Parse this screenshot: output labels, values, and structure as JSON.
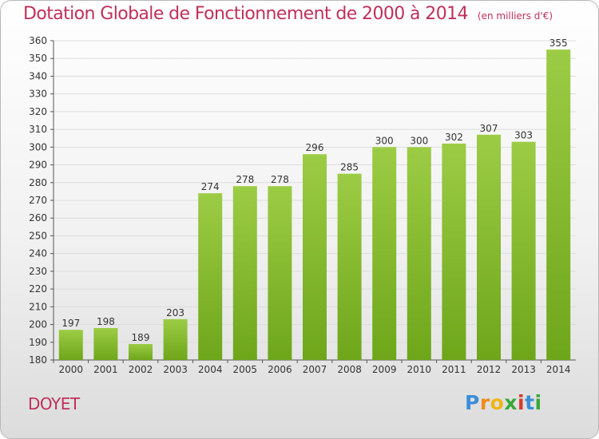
{
  "header": {
    "title": "Dotation Globale de Fonctionnement de 2000 à 2014",
    "unit_note": "(en milliers d'€)"
  },
  "footer": {
    "commune": "DOYET",
    "logo_text": "Proxiti"
  },
  "colors": {
    "title": "#c0305a",
    "bar_light": "#9ccc45",
    "bar_dark": "#6ea61a",
    "grid": "#dddddd",
    "axis": "#555555"
  },
  "chart_data": {
    "type": "bar",
    "title": "Dotation Globale de Fonctionnement de 2000 à 2014",
    "subtitle": "(en milliers d'€)",
    "xlabel": "",
    "ylabel": "",
    "categories": [
      "2000",
      "2001",
      "2002",
      "2003",
      "2004",
      "2005",
      "2006",
      "2007",
      "2008",
      "2009",
      "2010",
      "2011",
      "2012",
      "2013",
      "2014"
    ],
    "values": [
      197,
      198,
      189,
      203,
      274,
      278,
      278,
      296,
      285,
      300,
      300,
      302,
      307,
      303,
      355
    ],
    "ylim": [
      180,
      360
    ],
    "ytick_step": 10,
    "grid": true
  }
}
